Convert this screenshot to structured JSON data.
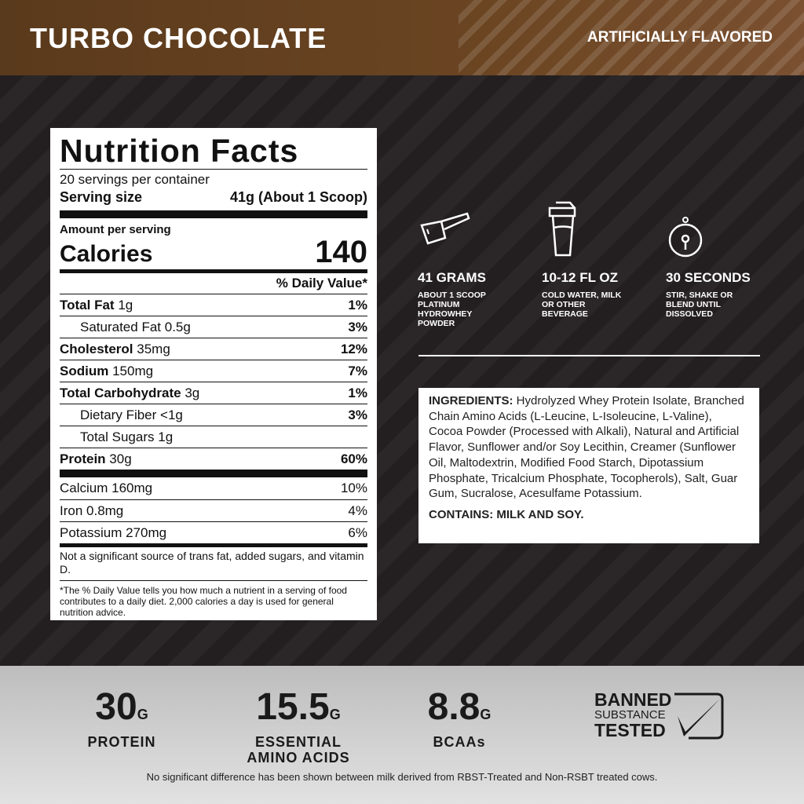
{
  "header": {
    "title": "TURBO CHOCOLATE",
    "flavor": "ARTIFICIALLY FLAVORED",
    "color": "#5a3a1c"
  },
  "label": {
    "title": "Nutrition Facts",
    "servings": "20 servings per container",
    "serving_size_label": "Serving size",
    "serving_size": "41g (About 1 Scoop)",
    "amount_per": "Amount per serving",
    "calories_label": "Calories",
    "calories": "140",
    "dv_header": "% Daily Value*",
    "rows": [
      {
        "name": "Total Fat",
        "amount": "1g",
        "dv": "1%",
        "bold": true,
        "indent": false
      },
      {
        "name": "Saturated Fat",
        "amount": "0.5g",
        "dv": "3%",
        "bold": false,
        "indent": true
      },
      {
        "name": "Cholesterol",
        "amount": "35mg",
        "dv": "12%",
        "bold": true,
        "indent": false
      },
      {
        "name": "Sodium",
        "amount": "150mg",
        "dv": "7%",
        "bold": true,
        "indent": false
      },
      {
        "name": "Total Carbohydrate",
        "amount": "3g",
        "dv": "1%",
        "bold": true,
        "indent": false
      },
      {
        "name": "Dietary Fiber",
        "amount": "<1g",
        "dv": "3%",
        "bold": false,
        "indent": true
      },
      {
        "name": "Total Sugars",
        "amount": "1g",
        "dv": "",
        "bold": false,
        "indent": true
      },
      {
        "name": "Protein",
        "amount": "30g",
        "dv": "60%",
        "bold": true,
        "indent": false
      }
    ],
    "minerals": [
      {
        "name": "Calcium 160mg",
        "dv": "10%"
      },
      {
        "name": "Iron 0.8mg",
        "dv": "4%"
      },
      {
        "name": "Potassium 270mg",
        "dv": "6%"
      }
    ],
    "not_significant": "Not a significant source of trans fat, added sugars, and vitamin D.",
    "footnote": "*The % Daily Value tells you how much a nutrient in a serving of food contributes to a daily diet. 2,000 calories a day is used for general nutrition advice."
  },
  "directions": [
    {
      "icon": "scoop-icon",
      "title": "41 GRAMS",
      "sub": "ABOUT 1 SCOOP PLATINUM HYDROWHEY POWDER"
    },
    {
      "icon": "shaker-icon",
      "title": "10-12 FL OZ",
      "sub": "COLD WATER, MILK OR OTHER BEVERAGE"
    },
    {
      "icon": "timer-icon",
      "title": "30 SECONDS",
      "sub": "STIR, SHAKE OR BLEND UNTIL DISSOLVED"
    }
  ],
  "ingredients": {
    "label": "INGREDIENTS:",
    "text": " Hydrolyzed Whey Protein Isolate, Branched Chain Amino Acids (L-Leucine, L-Isoleucine, L-Valine), Cocoa Powder (Processed with Alkali), Natural and Artificial Flavor, Sunflower and/or Soy Lecithin, Creamer (Sunflower Oil, Maltodextrin, Modified Food Starch, Dipotassium Phosphate, Tricalcium Phosphate, Tocopherols), Salt, Guar Gum, Sucralose, Acesulfame Potassium.",
    "contains": "CONTAINS: MILK AND SOY."
  },
  "stats": [
    {
      "value": "30",
      "unit": "G",
      "label": "PROTEIN"
    },
    {
      "value": "15.5",
      "unit": "G",
      "label": "ESSENTIAL AMINO ACIDS"
    },
    {
      "value": "8.8",
      "unit": "G",
      "label": "BCAAs"
    }
  ],
  "badge": {
    "line1": "BANNED",
    "line2": "SUBSTANCE",
    "line3": "TESTED"
  },
  "disclaimer": "No significant difference has been shown between milk derived from RBST-Treated and Non-RSBT treated cows."
}
